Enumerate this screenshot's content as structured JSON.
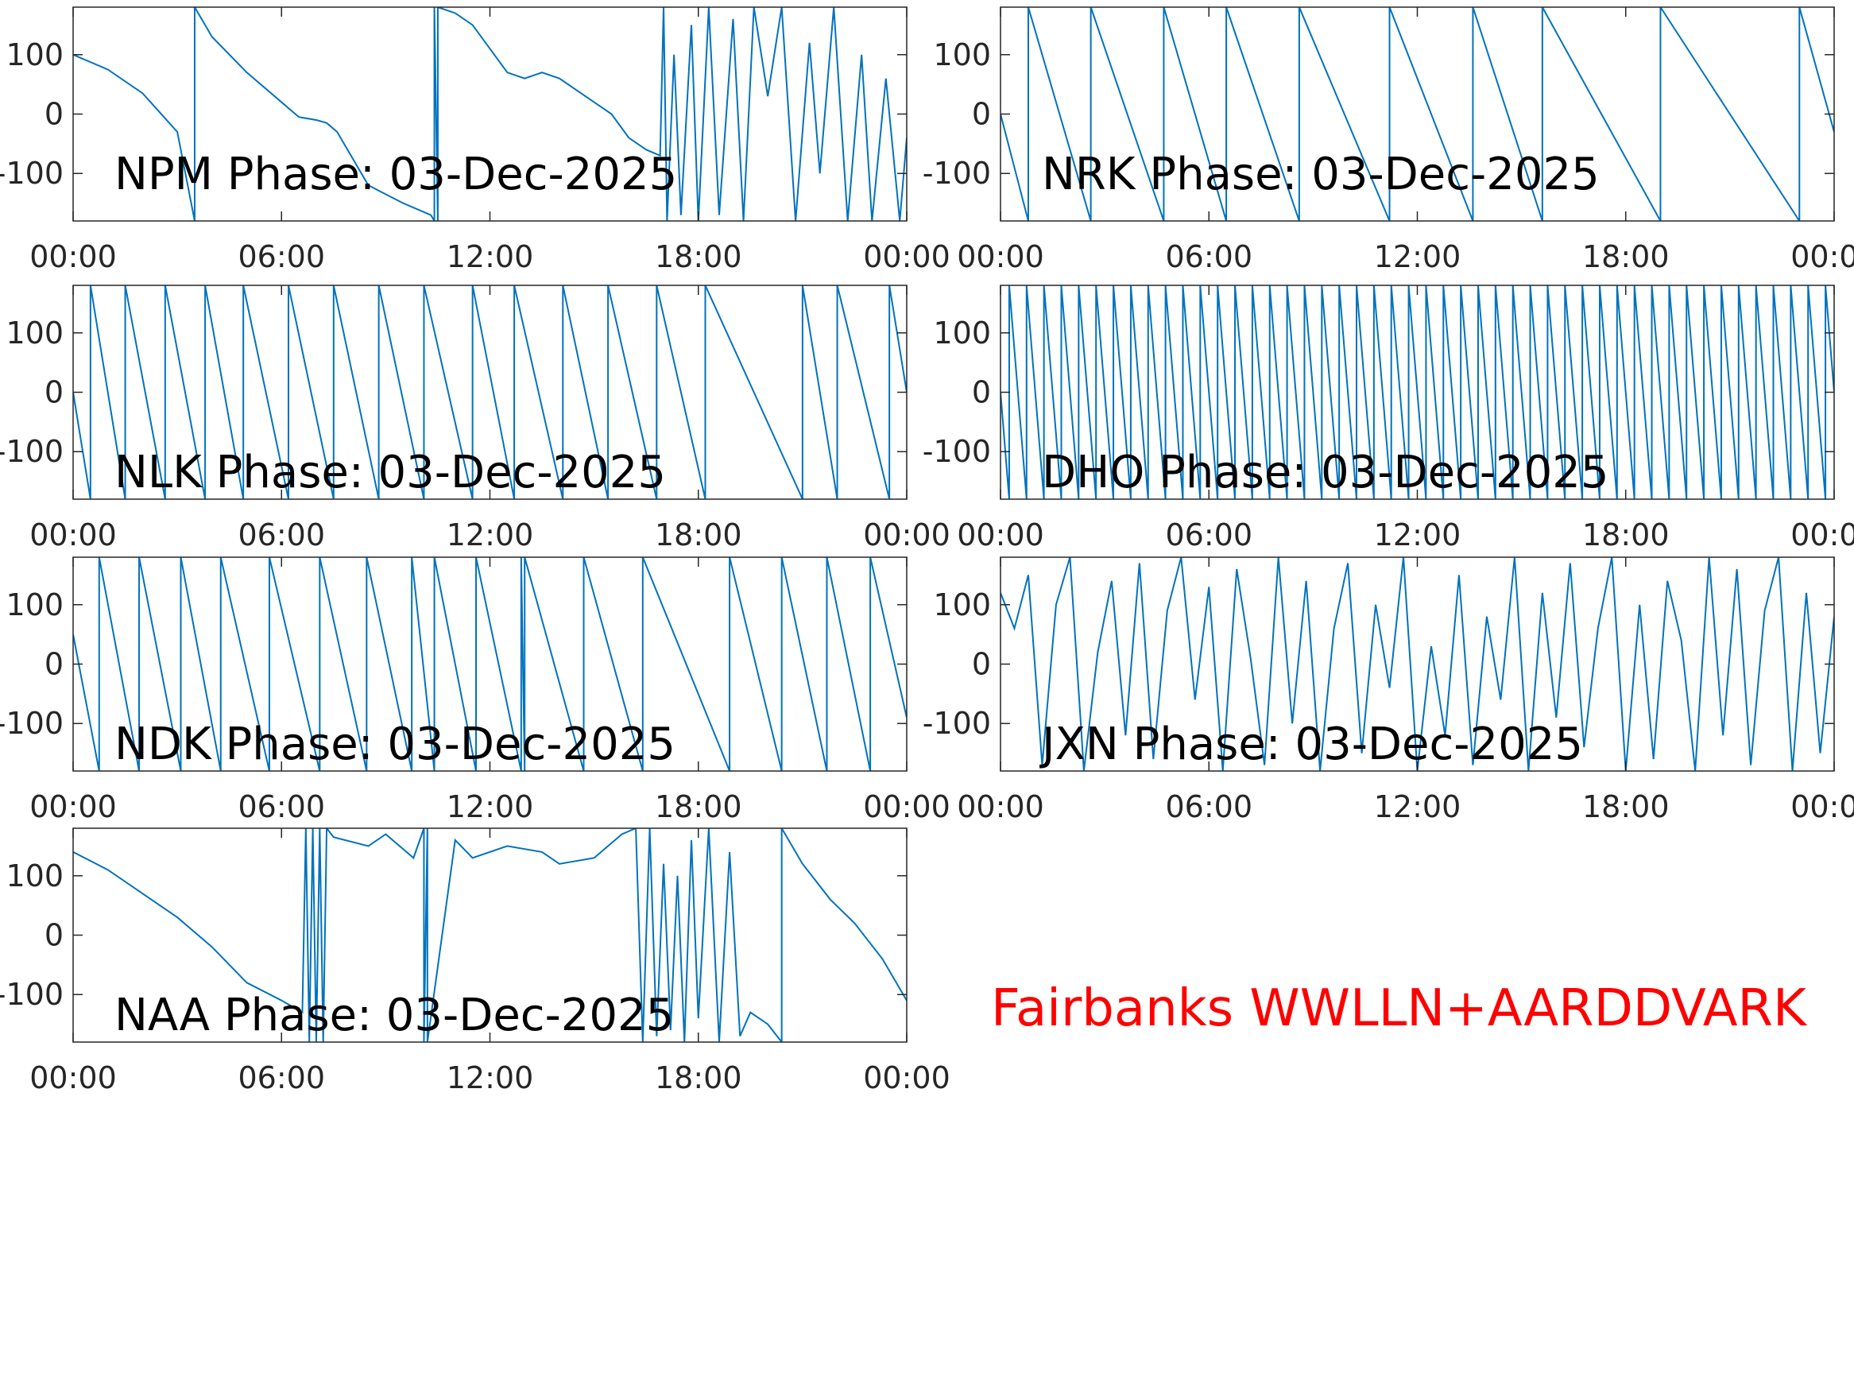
{
  "chart_data": [
    {
      "type": "line",
      "title": "NPM Phase: 03-Dec-2025",
      "color": "#0072bd",
      "x": [
        0,
        1,
        2,
        3,
        3.5,
        3.5,
        4,
        5,
        6,
        6.5,
        7,
        7.3,
        7.6,
        8.5,
        9.5,
        10.3,
        10.4,
        10.4,
        10.5,
        10.5,
        11,
        11.5,
        12,
        12.5,
        13,
        13.5,
        14,
        15,
        15.5,
        16,
        16.5,
        16.9,
        17,
        17.1,
        17.3,
        17.5,
        17.8,
        18,
        18.3,
        18.6,
        19,
        19.3,
        19.6,
        20,
        20.4,
        20.8,
        21.2,
        21.5,
        21.9,
        22.3,
        22.7,
        23,
        23.4,
        23.8,
        24
      ],
      "values": [
        100,
        75,
        35,
        -30,
        -180,
        180,
        130,
        70,
        20,
        -5,
        -10,
        -15,
        -30,
        -120,
        -150,
        -170,
        -180,
        180,
        -180,
        180,
        170,
        150,
        110,
        70,
        60,
        70,
        60,
        20,
        0,
        -40,
        -60,
        -70,
        180,
        -180,
        100,
        -170,
        150,
        -180,
        180,
        -170,
        160,
        -180,
        180,
        30,
        180,
        -180,
        120,
        -100,
        180,
        -180,
        100,
        -180,
        60,
        -180,
        -40
      ],
      "xlim": [
        0,
        24
      ],
      "ylim": [
        -180,
        180
      ],
      "xticks": [
        {
          "value": 0,
          "label": "00:00"
        },
        {
          "value": 6,
          "label": "06:00"
        },
        {
          "value": 12,
          "label": "12:00"
        },
        {
          "value": 18,
          "label": "18:00"
        },
        {
          "value": 24,
          "label": "00:00"
        }
      ],
      "yticks": [
        -100,
        0,
        100
      ]
    },
    {
      "type": "line",
      "title": "NRK Phase: 03-Dec-2025",
      "color": "#0072bd",
      "x": [
        0,
        0.8,
        0.8,
        2.6,
        2.6,
        4.7,
        4.7,
        6.5,
        6.5,
        8.6,
        8.6,
        11.2,
        11.2,
        13.6,
        13.6,
        15.6,
        15.6,
        19,
        19,
        23,
        23,
        24
      ],
      "values": [
        0,
        -180,
        180,
        -180,
        180,
        -180,
        180,
        -180,
        180,
        -180,
        180,
        -180,
        180,
        -180,
        180,
        -180,
        180,
        -180,
        180,
        -180,
        180,
        -30
      ],
      "xlim": [
        0,
        24
      ],
      "ylim": [
        -180,
        180
      ],
      "xticks": [
        {
          "value": 0,
          "label": "00:00"
        },
        {
          "value": 6,
          "label": "06:00"
        },
        {
          "value": 12,
          "label": "12:00"
        },
        {
          "value": 18,
          "label": "18:00"
        },
        {
          "value": 24,
          "label": "00:00"
        }
      ],
      "yticks": [
        -100,
        0,
        100
      ]
    },
    {
      "type": "line",
      "title": "NLK Phase: 03-Dec-2025",
      "color": "#0072bd",
      "x": [
        0,
        0.5,
        0.5,
        1.5,
        1.5,
        2.65,
        2.65,
        3.8,
        3.8,
        4.9,
        4.9,
        6.2,
        6.2,
        7.5,
        7.5,
        8.8,
        8.8,
        10.1,
        10.1,
        11.5,
        11.5,
        12.7,
        12.7,
        14.1,
        14.1,
        15.4,
        15.4,
        16.8,
        16.8,
        18.2,
        18.2,
        21,
        21,
        22,
        22,
        23.5,
        23.5,
        24
      ],
      "values": [
        0,
        -180,
        180,
        -180,
        180,
        -180,
        180,
        -180,
        180,
        -180,
        180,
        -180,
        180,
        -180,
        180,
        -180,
        180,
        -180,
        180,
        -180,
        180,
        -180,
        180,
        -180,
        180,
        -180,
        180,
        -180,
        180,
        -180,
        180,
        -180,
        180,
        -180,
        180,
        -180,
        180,
        0
      ],
      "xlim": [
        0,
        24
      ],
      "ylim": [
        -180,
        180
      ],
      "xticks": [
        {
          "value": 0,
          "label": "00:00"
        },
        {
          "value": 6,
          "label": "06:00"
        },
        {
          "value": 12,
          "label": "12:00"
        },
        {
          "value": 18,
          "label": "18:00"
        },
        {
          "value": 24,
          "label": "00:00"
        }
      ],
      "yticks": [
        -100,
        0,
        100
      ]
    },
    {
      "type": "line",
      "title": "DHO Phase: 03-Dec-2025",
      "color": "#0072bd",
      "x": [
        0,
        0.25,
        0.25,
        0.75,
        0.75,
        1.25,
        1.25,
        1.75,
        1.75,
        2.25,
        2.25,
        2.75,
        2.75,
        3.25,
        3.25,
        3.75,
        3.75,
        4.25,
        4.25,
        4.75,
        4.75,
        5.25,
        5.25,
        5.75,
        5.75,
        6.25,
        6.25,
        6.75,
        6.75,
        7.25,
        7.25,
        7.75,
        7.75,
        8.25,
        8.25,
        8.75,
        8.75,
        9.25,
        9.25,
        9.75,
        9.75,
        10.25,
        10.25,
        10.75,
        10.75,
        11.25,
        11.25,
        11.75,
        11.75,
        12.25,
        12.25,
        12.75,
        12.75,
        13.25,
        13.25,
        13.75,
        13.75,
        14.25,
        14.25,
        14.75,
        14.75,
        15.25,
        15.25,
        15.75,
        15.75,
        16.25,
        16.25,
        16.75,
        16.75,
        17.25,
        17.25,
        17.75,
        17.75,
        18.25,
        18.25,
        18.75,
        18.75,
        19.25,
        19.25,
        19.75,
        19.75,
        20.25,
        20.25,
        20.75,
        20.75,
        21.25,
        21.25,
        21.75,
        21.75,
        22.25,
        22.25,
        22.75,
        22.75,
        23.25,
        23.25,
        23.75,
        23.75,
        24
      ],
      "values": [
        0,
        -180,
        180,
        -180,
        180,
        -180,
        180,
        -180,
        180,
        -180,
        180,
        -180,
        180,
        -180,
        180,
        -180,
        180,
        -180,
        180,
        -180,
        180,
        -180,
        180,
        -180,
        180,
        -180,
        180,
        -180,
        180,
        -180,
        180,
        -180,
        180,
        -180,
        180,
        -180,
        180,
        -180,
        180,
        -180,
        180,
        -180,
        180,
        -180,
        180,
        -180,
        180,
        -180,
        180,
        -180,
        180,
        -180,
        180,
        -180,
        180,
        -180,
        180,
        -180,
        180,
        -180,
        180,
        -180,
        180,
        -180,
        180,
        -180,
        180,
        -180,
        180,
        -180,
        180,
        -180,
        180,
        -180,
        180,
        -180,
        180,
        -180,
        180,
        -180,
        180,
        -180,
        180,
        -180,
        180,
        -180,
        180,
        -180,
        180,
        -180,
        180,
        -180,
        180,
        -180,
        180,
        -180,
        180,
        0
      ],
      "xlim": [
        0,
        24
      ],
      "ylim": [
        -180,
        180
      ],
      "xticks": [
        {
          "value": 0,
          "label": "00:00"
        },
        {
          "value": 6,
          "label": "06:00"
        },
        {
          "value": 12,
          "label": "12:00"
        },
        {
          "value": 18,
          "label": "18:00"
        },
        {
          "value": 24,
          "label": "00:00"
        }
      ],
      "yticks": [
        -100,
        0,
        100
      ]
    },
    {
      "type": "line",
      "title": "NDK Phase: 03-Dec-2025",
      "color": "#0072bd",
      "x": [
        0,
        0.75,
        0.75,
        1.9,
        1.9,
        3.1,
        3.1,
        4.25,
        4.25,
        5.65,
        5.65,
        7.1,
        7.1,
        8.45,
        8.45,
        9.75,
        9.75,
        10.4,
        10.4,
        11.6,
        11.6,
        12.9,
        12.9,
        13,
        13,
        14.7,
        14.7,
        16.4,
        16.4,
        18.9,
        18.9,
        20.4,
        20.4,
        21.7,
        21.7,
        22.95,
        22.95,
        24
      ],
      "values": [
        50,
        -180,
        180,
        -180,
        180,
        -180,
        180,
        -180,
        180,
        -180,
        180,
        -180,
        180,
        -180,
        180,
        -180,
        180,
        -180,
        180,
        -180,
        180,
        -180,
        180,
        -180,
        180,
        -180,
        180,
        -180,
        180,
        -180,
        180,
        -180,
        180,
        -180,
        180,
        -180,
        180,
        -90
      ],
      "xlim": [
        0,
        24
      ],
      "ylim": [
        -180,
        180
      ],
      "xticks": [
        {
          "value": 0,
          "label": "00:00"
        },
        {
          "value": 6,
          "label": "06:00"
        },
        {
          "value": 12,
          "label": "12:00"
        },
        {
          "value": 18,
          "label": "18:00"
        },
        {
          "value": 24,
          "label": "00:00"
        }
      ],
      "yticks": [
        -100,
        0,
        100
      ]
    },
    {
      "type": "line",
      "title": "JXN Phase: 03-Dec-2025",
      "color": "#0072bd",
      "x": [
        0,
        0.4,
        0.8,
        1.2,
        1.6,
        2,
        2.4,
        2.8,
        3.2,
        3.6,
        4,
        4.4,
        4.8,
        5.2,
        5.6,
        6,
        6.4,
        6.8,
        7.2,
        7.6,
        8,
        8.4,
        8.8,
        9.2,
        9.6,
        10,
        10.4,
        10.8,
        11.2,
        11.6,
        12,
        12.4,
        12.8,
        13.2,
        13.6,
        14,
        14.4,
        14.8,
        15.2,
        15.6,
        16,
        16.4,
        16.8,
        17.2,
        17.6,
        18,
        18.4,
        18.8,
        19.2,
        19.6,
        20,
        20.4,
        20.8,
        21.2,
        21.6,
        22,
        22.4,
        22.8,
        23.2,
        23.6,
        24
      ],
      "values": [
        120,
        60,
        150,
        -170,
        100,
        180,
        -180,
        20,
        140,
        -120,
        170,
        -160,
        90,
        180,
        -60,
        130,
        -180,
        160,
        10,
        -170,
        180,
        -100,
        140,
        -180,
        60,
        170,
        -150,
        100,
        -40,
        180,
        -180,
        30,
        -120,
        150,
        -170,
        80,
        -60,
        180,
        -180,
        120,
        -90,
        170,
        -140,
        60,
        180,
        -180,
        100,
        -160,
        140,
        40,
        -180,
        180,
        -120,
        160,
        -170,
        90,
        180,
        -180,
        120,
        -150,
        80
      ],
      "xlim": [
        0,
        24
      ],
      "ylim": [
        -180,
        180
      ],
      "xticks": [
        {
          "value": 0,
          "label": "00:00"
        },
        {
          "value": 6,
          "label": "06:00"
        },
        {
          "value": 12,
          "label": "12:00"
        },
        {
          "value": 18,
          "label": "18:00"
        },
        {
          "value": 24,
          "label": "00:00"
        }
      ],
      "yticks": [
        -100,
        0,
        100
      ]
    },
    {
      "type": "line",
      "title": "NAA Phase: 03-Dec-2025",
      "color": "#0072bd",
      "x": [
        0,
        1,
        2,
        3,
        4,
        5,
        6,
        6.6,
        6.7,
        6.8,
        6.9,
        7,
        7.1,
        7.2,
        7.3,
        7.5,
        8.5,
        9,
        9.8,
        10.1,
        10.1,
        10.2,
        10.2,
        11,
        11.5,
        12.5,
        13.5,
        14,
        15,
        15.8,
        16.2,
        16.4,
        16.6,
        16.8,
        17,
        17.2,
        17.4,
        17.6,
        17.8,
        18,
        18.3,
        18.6,
        18.9,
        19.2,
        19.5,
        20,
        20.4,
        20.4,
        21,
        21.8,
        22.5,
        23.3,
        24
      ],
      "values": [
        140,
        110,
        70,
        30,
        -20,
        -80,
        -110,
        -130,
        180,
        -180,
        180,
        -180,
        180,
        -180,
        180,
        165,
        150,
        170,
        130,
        180,
        -180,
        180,
        -180,
        160,
        130,
        150,
        140,
        120,
        130,
        170,
        180,
        -180,
        180,
        -170,
        120,
        -160,
        100,
        -180,
        160,
        -140,
        180,
        -180,
        140,
        -170,
        -130,
        -150,
        -180,
        180,
        120,
        60,
        20,
        -40,
        -110
      ],
      "xlim": [
        0,
        24
      ],
      "ylim": [
        -180,
        180
      ],
      "xticks": [
        {
          "value": 0,
          "label": "00:00"
        },
        {
          "value": 6,
          "label": "06:00"
        },
        {
          "value": 12,
          "label": "12:00"
        },
        {
          "value": 18,
          "label": "18:00"
        },
        {
          "value": 24,
          "label": "00:00"
        }
      ],
      "yticks": [
        -100,
        0,
        100
      ]
    }
  ],
  "annotation": "Fairbanks WWLLN+AARDDVARK"
}
